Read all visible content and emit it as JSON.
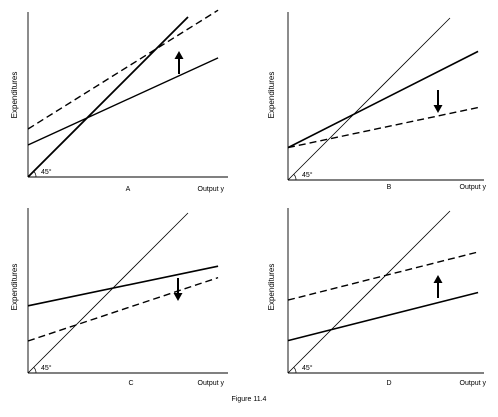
{
  "figure": {
    "caption": "Figure 11.4"
  },
  "panels": [
    {
      "label": "A",
      "ylabel": "Expenditures",
      "xlabel": "Output y",
      "angle_label": "45°",
      "arrow": "up",
      "solid_line": {
        "intercept": 0.2,
        "slope": 0.55
      },
      "dashed_line": {
        "intercept": 0.3,
        "slope": 0.75
      }
    },
    {
      "label": "B",
      "ylabel": "Expenditures",
      "xlabel": "Output y",
      "angle_label": "45°",
      "arrow": "down",
      "solid_line": {
        "intercept": 0.2,
        "slope": 0.6
      },
      "dashed_line": {
        "intercept": 0.2,
        "slope": 0.25
      }
    },
    {
      "label": "C",
      "ylabel": "Expenditures",
      "xlabel": "Output y",
      "angle_label": "45°",
      "arrow": "down",
      "solid_line": {
        "intercept": 0.42,
        "slope": 0.25
      },
      "dashed_line": {
        "intercept": 0.2,
        "slope": 0.4
      }
    },
    {
      "label": "D",
      "ylabel": "Expenditures",
      "xlabel": "Output y",
      "angle_label": "45°",
      "arrow": "up",
      "solid_line": {
        "intercept": 0.2,
        "slope": 0.3
      },
      "dashed_line": {
        "intercept": 0.45,
        "slope": 0.3
      }
    }
  ]
}
